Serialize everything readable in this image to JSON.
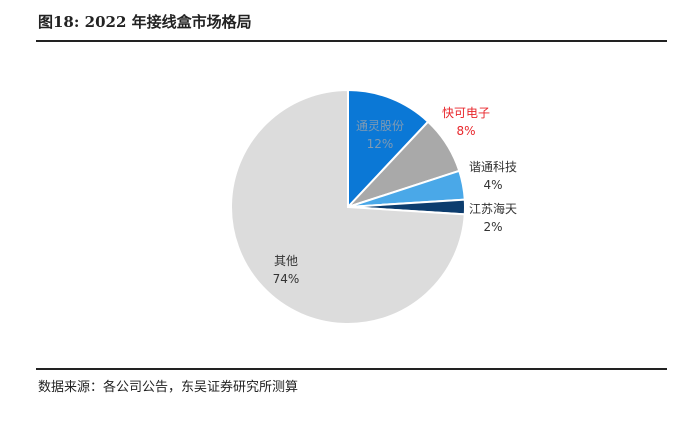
{
  "figure": {
    "title": "图18:  2022 年接线盒市场格局",
    "source": "数据来源：各公司公告，东吴证券研究所测算"
  },
  "chart_data": {
    "type": "pie",
    "title": "",
    "slices": [
      {
        "label": "通灵股份",
        "value": 12,
        "value_label": "12%",
        "color": "#0b78d6",
        "label_color": "#7f9ab3"
      },
      {
        "label": "快可电子",
        "value": 8,
        "value_label": "8%",
        "color": "#a9a9a9",
        "label_color": "#e8262b"
      },
      {
        "label": "谐通科技",
        "value": 4,
        "value_label": "4%",
        "color": "#4aa8e8",
        "label_color": "#333333"
      },
      {
        "label": "江苏海天",
        "value": 2,
        "value_label": "2%",
        "color": "#0d3d6e",
        "label_color": "#333333"
      },
      {
        "label": "其他",
        "value": 74,
        "value_label": "74%",
        "color": "#dcdcdc",
        "label_color": "#333333"
      }
    ],
    "start_angle_deg": 0,
    "direction": "clockwise",
    "legend": "none"
  }
}
